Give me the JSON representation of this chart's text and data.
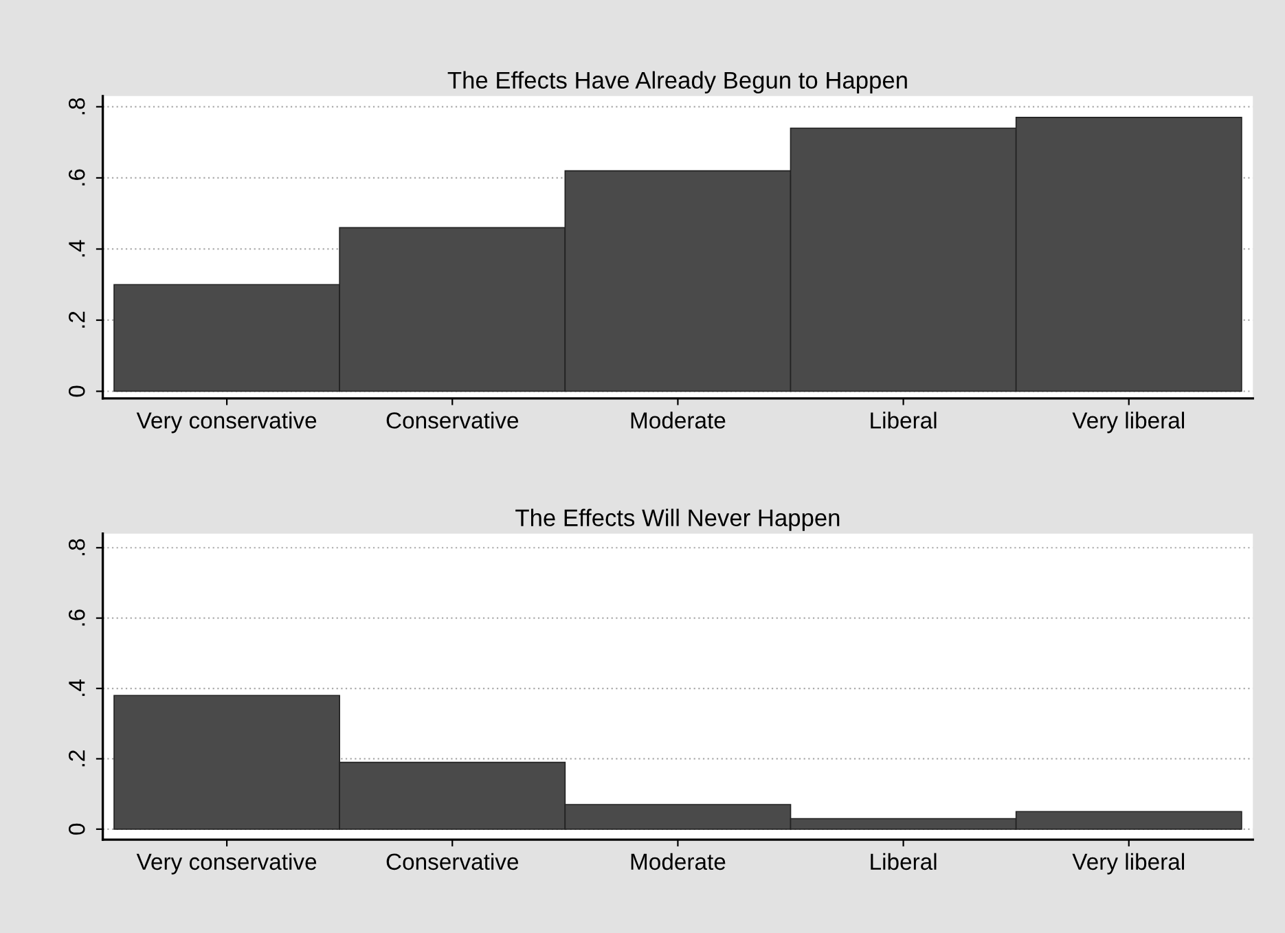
{
  "chart_data": [
    {
      "type": "bar",
      "title": "The Effects Have Already Begun to Happen",
      "categories": [
        "Very conservative",
        "Conservative",
        "Moderate",
        "Liberal",
        "Very liberal"
      ],
      "values": [
        0.3,
        0.46,
        0.62,
        0.74,
        0.77
      ],
      "color": "#4a4a4a",
      "ylim": [
        -0.02,
        0.83
      ],
      "yticks": [
        {
          "value": 0,
          "label": "0"
        },
        {
          "value": 0.2,
          "label": ".2"
        },
        {
          "value": 0.4,
          "label": ".4"
        },
        {
          "value": 0.6,
          "label": ".6"
        },
        {
          "value": 0.8,
          "label": ".8"
        }
      ],
      "grid": "y"
    },
    {
      "type": "bar",
      "title": "The Effects Will Never Happen",
      "categories": [
        "Very conservative",
        "Conservative",
        "Moderate",
        "Liberal",
        "Very liberal"
      ],
      "values": [
        0.38,
        0.19,
        0.07,
        0.03,
        0.05
      ],
      "color": "#4a4a4a",
      "ylim": [
        -0.03,
        0.84
      ],
      "yticks": [
        {
          "value": 0,
          "label": "0"
        },
        {
          "value": 0.2,
          "label": ".2"
        },
        {
          "value": 0.4,
          "label": ".4"
        },
        {
          "value": 0.6,
          "label": ".6"
        },
        {
          "value": 0.8,
          "label": ".8"
        }
      ],
      "grid": "y"
    }
  ]
}
